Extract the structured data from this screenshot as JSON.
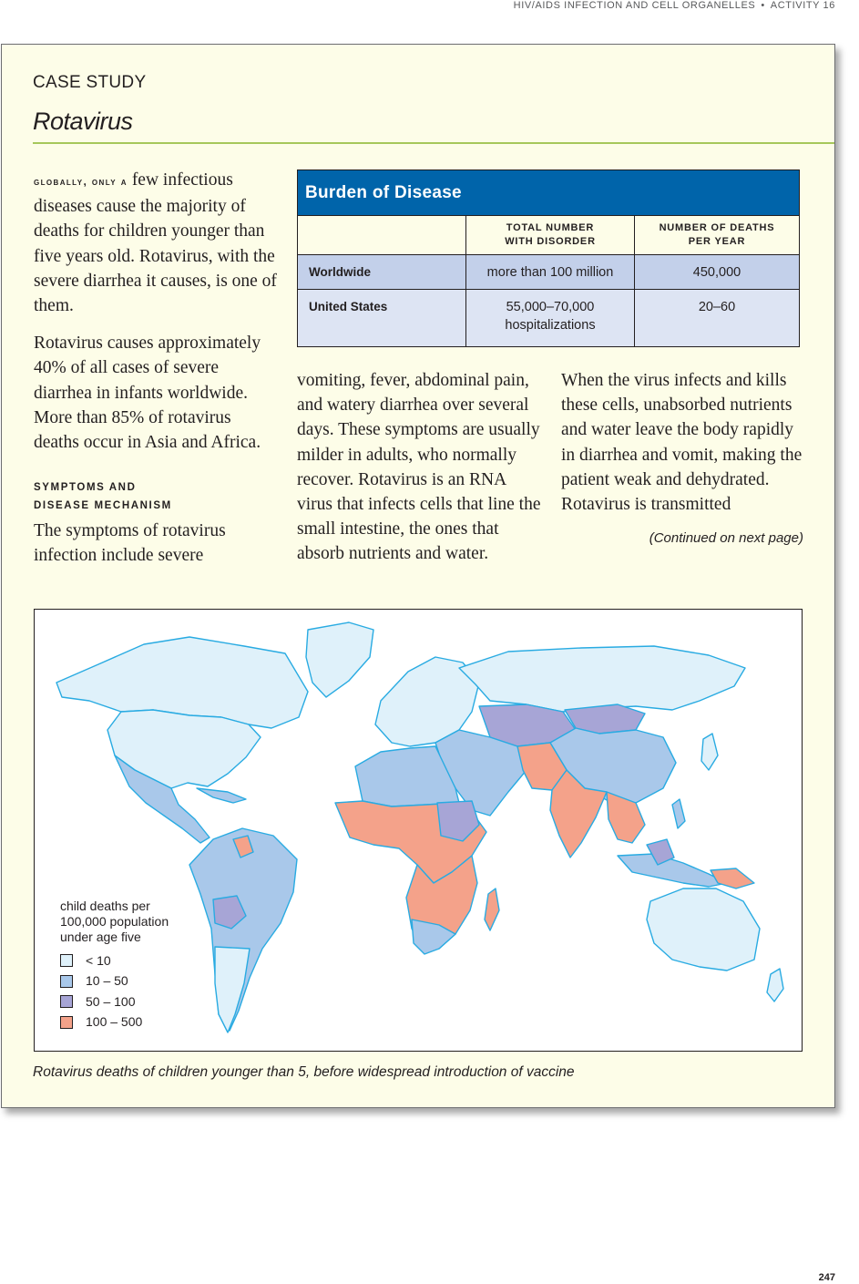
{
  "running_head": {
    "text": "HIV/AIDS INFECTION AND CELL ORGANELLES",
    "separator": "•",
    "activity": "ACTIVITY 16"
  },
  "kicker": "CASE STUDY",
  "title": "Rotavirus",
  "col1": {
    "lead": "globally, only a",
    "p1_rest": " few infectious diseases cause the majority of deaths for children younger than five years old. Rotavirus, with the severe diarrhea it causes, is one of them.",
    "p2": "Rotavirus causes approximately 40% of all cases of severe diarrhea in infants worldwide. More than 85% of rotavirus deaths occur in Asia and Africa.",
    "subhead_line1": "symptoms and",
    "subhead_line2": "disease mechanism",
    "p3": "The symptoms of rotavirus infection include severe"
  },
  "col2": {
    "text": "vomiting, fever, abdominal pain, and watery diarrhea over several days. These symptoms are usually milder in adults, who normally recover. Rotavirus is an RNA virus that infects cells that line the small intestine, the ones that absorb nutrients and water."
  },
  "col3": {
    "text": "When the virus infects and kills these cells, unabsorbed nutrients and water leave the body rapidly in diarrhea and vomit, making the patient weak and dehydrated. Rotavirus is transmitted",
    "continued": "(Continued on next page)"
  },
  "table": {
    "title": "Burden of Disease",
    "col_headers": [
      {
        "line1": "TOTAL NUMBER",
        "line2": "WITH DISORDER"
      },
      {
        "line1": "NUMBER OF DEATHS",
        "line2": "PER YEAR"
      }
    ],
    "rows": [
      {
        "label": "Worldwide",
        "total": "more than 100 million",
        "total2": "",
        "deaths": "450,000"
      },
      {
        "label": "United States",
        "total": "55,000–70,000",
        "total2": "hospitalizations",
        "deaths": "20–60"
      }
    ]
  },
  "map": {
    "legend_title": [
      "child deaths per",
      "100,000 population",
      "under age five"
    ],
    "legend_items": [
      {
        "label": "< 10",
        "color": "#dff1fa"
      },
      {
        "label": "10 – 50",
        "color": "#a9c8ea"
      },
      {
        "label": "50 – 100",
        "color": "#a7a5d6"
      },
      {
        "label": "100 – 500",
        "color": "#f4a28a"
      }
    ],
    "coast_color": "#29abe2",
    "caption": "Rotavirus deaths of children younger than 5, before widespread introduction of vaccine"
  },
  "folio": "247"
}
